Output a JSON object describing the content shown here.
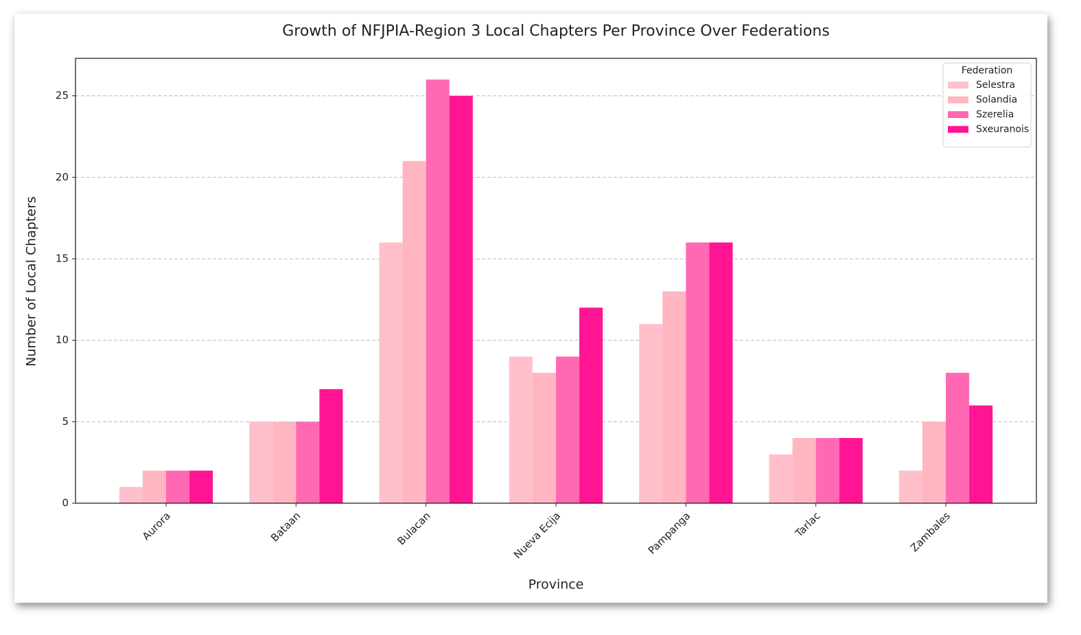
{
  "chart_data": {
    "type": "bar",
    "title": "Growth of NFJPIA-Region 3 Local Chapters Per Province Over Federations",
    "x_label": "Province",
    "y_label": "Number of Local Chapters",
    "categories": [
      "Aurora",
      "Bataan",
      "Bulacan",
      "Nueva Ecija",
      "Pampanga",
      "Tarlac",
      "Zambales"
    ],
    "series": [
      {
        "name": "Selestra",
        "color": "#ffc0cb",
        "values": [
          1,
          5,
          16,
          9,
          11,
          3,
          2
        ]
      },
      {
        "name": "Solandia",
        "color": "#ffb6c1",
        "values": [
          2,
          5,
          21,
          8,
          13,
          4,
          5
        ]
      },
      {
        "name": "Szerelia",
        "color": "#ff69b4",
        "values": [
          2,
          5,
          26,
          9,
          16,
          4,
          8
        ]
      },
      {
        "name": "Sxeuranois",
        "color": "#ff1493",
        "values": [
          2,
          7,
          25,
          12,
          16,
          4,
          6
        ]
      }
    ],
    "legend_title": "Federation",
    "legend_position": "upper right",
    "ylim": [
      0,
      27.3
    ],
    "yticks": [
      0,
      5,
      10,
      15,
      20,
      25
    ],
    "grid": true
  }
}
